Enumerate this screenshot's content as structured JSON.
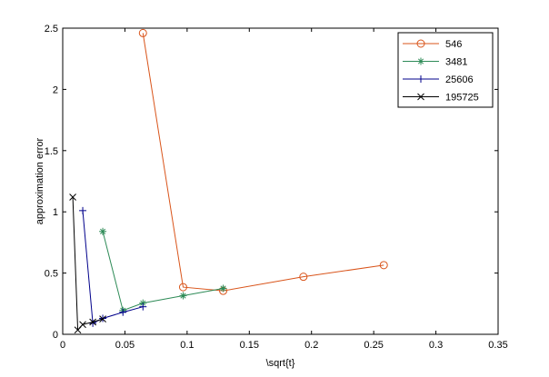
{
  "chart_data": {
    "type": "line",
    "title": "",
    "xlabel": "\\sqrt{t}",
    "ylabel": "approximation error",
    "xlim": [
      0,
      0.35
    ],
    "ylim": [
      0,
      2.5
    ],
    "xticks": [
      "0",
      "0.05",
      "0.1",
      "0.15",
      "0.2",
      "0.25",
      "0.3",
      "0.35"
    ],
    "yticks": [
      "0",
      "0.5",
      "1",
      "1.5",
      "2",
      "2.5"
    ],
    "grid": false,
    "legend_position": "top-right",
    "series": [
      {
        "name": "546",
        "color": "#d9541a",
        "marker": "circle",
        "x": [
          0.0645,
          0.0968,
          0.129,
          0.1935,
          0.2581
        ],
        "y": [
          2.46,
          0.385,
          0.355,
          0.47,
          0.565
        ]
      },
      {
        "name": "3481",
        "color": "#2e8b57",
        "marker": "star",
        "x": [
          0.0322,
          0.0484,
          0.0645,
          0.0968,
          0.129
        ],
        "y": [
          0.84,
          0.195,
          0.255,
          0.315,
          0.375
        ]
      },
      {
        "name": "25606",
        "color": "#00008b",
        "marker": "plus",
        "x": [
          0.0161,
          0.0242,
          0.0322,
          0.0484,
          0.0645
        ],
        "y": [
          1.01,
          0.09,
          0.13,
          0.18,
          0.225
        ]
      },
      {
        "name": "195725",
        "color": "#000000",
        "marker": "x",
        "x": [
          0.0081,
          0.0121,
          0.0161,
          0.0242,
          0.0322
        ],
        "y": [
          1.12,
          0.035,
          0.08,
          0.1,
          0.125
        ]
      }
    ]
  }
}
